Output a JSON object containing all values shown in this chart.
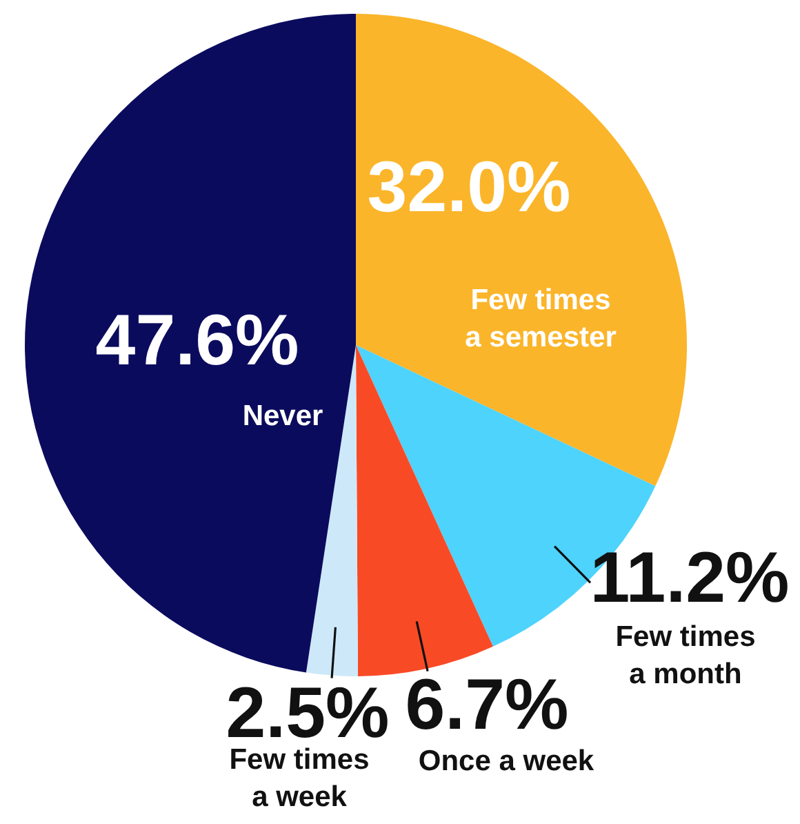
{
  "chart_data": {
    "type": "pie",
    "categories": [
      "Few times a semester",
      "Few times a month",
      "Once a week",
      "Few times a week",
      "Never"
    ],
    "values": [
      32.0,
      11.2,
      6.7,
      2.5,
      47.6
    ],
    "value_labels": [
      "32.0%",
      "11.2%",
      "6.7%",
      "2.5%",
      "47.6%"
    ],
    "colors": [
      "#fbb52a",
      "#4dd3fc",
      "#f94a26",
      "#cde9f9",
      "#0b0b5e"
    ]
  }
}
